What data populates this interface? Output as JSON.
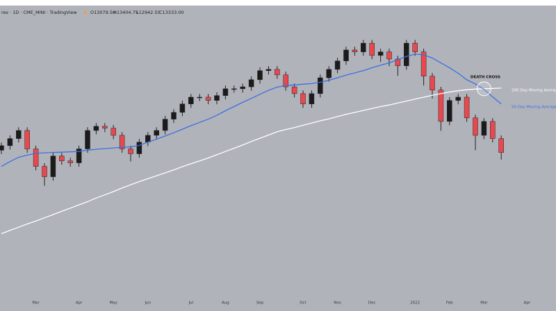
{
  "chart_data": {
    "type": "candlestick",
    "header": "res · 1D · CME_MINI · TradingView",
    "ohlc_readout": [
      "O13079.50",
      "H13404.75",
      "L12942.50",
      "C13333.00"
    ],
    "annotation": "DEATH CROSS",
    "up_color": "#1b1b1b",
    "down_color": "#e8494f",
    "background": "#b1b3bb",
    "ylim": [
      8500,
      17730
    ],
    "categories": [
      null,
      null,
      null,
      null,
      "Mar",
      null,
      null,
      null,
      null,
      "Apr",
      null,
      null,
      null,
      "May",
      null,
      null,
      null,
      "Jun",
      null,
      null,
      null,
      null,
      "Jul",
      null,
      null,
      null,
      "Aug",
      null,
      null,
      null,
      "Sep",
      null,
      null,
      null,
      null,
      "Oct",
      null,
      null,
      null,
      "Nov",
      null,
      null,
      null,
      "Dec",
      null,
      null,
      null,
      null,
      "2022",
      null,
      null,
      null,
      "Feb",
      null,
      null,
      null,
      "Mar",
      null,
      null,
      null,
      null,
      "Apr"
    ],
    "open": [
      13300,
      13440,
      13660,
      13910,
      13340,
      12800,
      12480,
      13120,
      12970,
      12910,
      13340,
      13910,
      14040,
      13980,
      13760,
      13340,
      13190,
      13550,
      13760,
      13910,
      14260,
      14470,
      14730,
      14940,
      14940,
      14840,
      14990,
      15200,
      15200,
      15260,
      15480,
      15760,
      15800,
      15630,
      15260,
      15050,
      14730,
      15050,
      15540,
      15800,
      16060,
      16400,
      16340,
      16610,
      16230,
      16340,
      16120,
      15910,
      16610,
      16340,
      15590,
      15160,
      14190,
      14840,
      14940,
      14300,
      13760,
      14190,
      13660,
      null,
      null,
      null
    ],
    "high": [
      13540,
      13760,
      14010,
      14010,
      13440,
      12900,
      13220,
      13220,
      13070,
      13440,
      14010,
      14140,
      14140,
      14080,
      13860,
      13440,
      13650,
      13860,
      14010,
      14360,
      14570,
      14830,
      15040,
      15040,
      15040,
      15090,
      15300,
      15300,
      15360,
      15580,
      15860,
      15900,
      15900,
      15730,
      15360,
      15150,
      15150,
      15640,
      15900,
      16160,
      16500,
      16500,
      16710,
      16710,
      16440,
      16440,
      16220,
      16710,
      16710,
      16440,
      15690,
      15260,
      14940,
      15040,
      15040,
      14400,
      14290,
      14290,
      13760,
      null,
      null,
      null
    ],
    "low": [
      13180,
      13320,
      13540,
      13220,
      12680,
      12200,
      12360,
      12850,
      12790,
      12790,
      13220,
      13790,
      13860,
      13640,
      13220,
      12950,
      13070,
      13430,
      13640,
      13790,
      14140,
      14350,
      14610,
      14820,
      14720,
      14720,
      14870,
      15080,
      15080,
      15140,
      15360,
      15640,
      15510,
      15140,
      14930,
      14610,
      14610,
      14930,
      15420,
      15680,
      15940,
      16220,
      16220,
      16110,
      16030,
      15900,
      15600,
      15790,
      16220,
      15300,
      14900,
      13900,
      14070,
      14720,
      14180,
      13300,
      13640,
      13540,
      13010,
      null,
      null,
      null
    ],
    "close": [
      13440,
      13660,
      13910,
      13340,
      12800,
      12480,
      13120,
      12970,
      12910,
      13340,
      13910,
      14040,
      13980,
      13760,
      13340,
      13190,
      13550,
      13760,
      13910,
      14260,
      14470,
      14730,
      14940,
      14940,
      14840,
      14990,
      15200,
      15200,
      15260,
      15480,
      15760,
      15800,
      15630,
      15260,
      15050,
      14730,
      15050,
      15540,
      15800,
      16060,
      16400,
      16340,
      16610,
      16230,
      16340,
      16120,
      15910,
      16610,
      16340,
      15590,
      15160,
      14190,
      14840,
      14940,
      14300,
      13760,
      14190,
      13660,
      13230,
      null,
      null,
      null
    ],
    "series": [
      {
        "name": "200 Day Moving Average",
        "color": "#ffffff",
        "values": [
          10720,
          10820,
          10920,
          11020,
          11110,
          11210,
          11310,
          11410,
          11510,
          11610,
          11710,
          11820,
          11920,
          12020,
          12130,
          12230,
          12330,
          12420,
          12510,
          12600,
          12690,
          12790,
          12880,
          12970,
          13060,
          13160,
          13260,
          13360,
          13460,
          13570,
          13670,
          13770,
          13870,
          13940,
          14000,
          14070,
          14140,
          14210,
          14270,
          14340,
          14410,
          14470,
          14530,
          14590,
          14650,
          14700,
          14760,
          14820,
          14880,
          14940,
          15000,
          15050,
          15100,
          15140,
          15170,
          15190,
          15200,
          15210,
          15220,
          null,
          null,
          null
        ]
      },
      {
        "name": "50 Day Moving Average",
        "color": "#3b6fe0",
        "values": [
          12800,
          12950,
          13080,
          13150,
          13200,
          13220,
          13230,
          13240,
          13250,
          13260,
          13300,
          13330,
          13350,
          13370,
          13390,
          13400,
          13450,
          13550,
          13640,
          13740,
          13840,
          13950,
          14060,
          14160,
          14260,
          14380,
          14520,
          14650,
          14780,
          14900,
          15030,
          15150,
          15250,
          15300,
          15320,
          15340,
          15360,
          15400,
          15460,
          15540,
          15620,
          15690,
          15760,
          15850,
          15930,
          16000,
          16100,
          16200,
          16270,
          16250,
          16150,
          16000,
          15850,
          15680,
          15480,
          15350,
          15180,
          14950,
          14730,
          null,
          null,
          null
        ]
      }
    ]
  }
}
